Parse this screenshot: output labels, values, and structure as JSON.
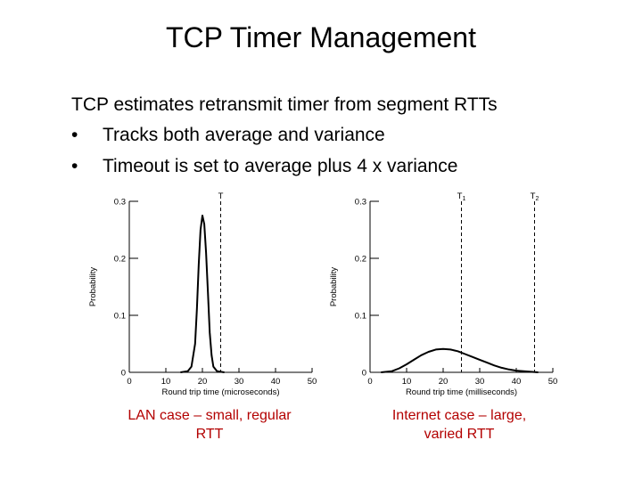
{
  "slide": {
    "title": "TCP Timer Management",
    "intro": "TCP estimates retransmit timer from segment RTTs",
    "bullets": [
      "Tracks both average and variance",
      "Timeout is set to average plus 4 x variance"
    ],
    "bullet_glyph": "•"
  },
  "captions": {
    "left": "LAN case – small, regular RTT",
    "right": "Internet case – large, varied RTT"
  },
  "chart_data": [
    {
      "type": "line",
      "xlabel": "Round trip time (microseconds)",
      "ylabel": "Probability",
      "xlim": [
        0,
        50
      ],
      "ylim": [
        0,
        0.3
      ],
      "xticks": [
        0,
        10,
        20,
        30,
        40,
        50
      ],
      "yticks": [
        0,
        0.1,
        0.2,
        0.3
      ],
      "ytick_labels": [
        "0",
        "0.1",
        "0.2",
        "0.3"
      ],
      "series": [
        {
          "x": [
            14,
            16,
            17,
            18,
            18.5,
            19,
            19.5,
            20,
            20.5,
            21,
            21.5,
            22,
            22.5,
            23,
            24,
            26
          ],
          "y": [
            0,
            0.002,
            0.01,
            0.05,
            0.11,
            0.19,
            0.25,
            0.275,
            0.26,
            0.21,
            0.14,
            0.07,
            0.03,
            0.01,
            0.002,
            0
          ]
        }
      ],
      "thresholds": [
        {
          "label": "T",
          "x": 25
        }
      ]
    },
    {
      "type": "line",
      "xlabel": "Round trip time (milliseconds)",
      "ylabel": "Probability",
      "xlim": [
        0,
        50
      ],
      "ylim": [
        0,
        0.3
      ],
      "xticks": [
        0,
        10,
        20,
        30,
        40,
        50
      ],
      "yticks": [
        0,
        0.1,
        0.2,
        0.3
      ],
      "ytick_labels": [
        "0",
        "0.1",
        "0.2",
        "0.3"
      ],
      "series": [
        {
          "x": [
            3,
            6,
            8,
            10,
            12,
            14,
            16,
            18,
            20,
            22,
            24,
            26,
            28,
            30,
            32,
            34,
            36,
            38,
            40,
            42,
            44,
            46
          ],
          "y": [
            0,
            0.002,
            0.007,
            0.014,
            0.022,
            0.03,
            0.036,
            0.04,
            0.041,
            0.04,
            0.037,
            0.032,
            0.027,
            0.022,
            0.017,
            0.012,
            0.008,
            0.005,
            0.003,
            0.002,
            0.001,
            0
          ]
        }
      ],
      "thresholds": [
        {
          "label": "T",
          "sub": "1",
          "x": 25
        },
        {
          "label": "T",
          "sub": "2",
          "x": 45
        }
      ]
    }
  ]
}
